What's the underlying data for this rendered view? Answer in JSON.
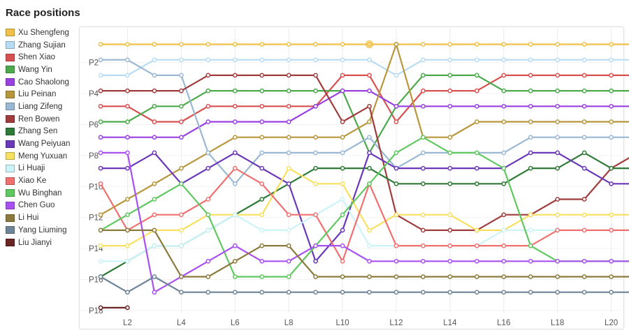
{
  "chart_data": {
    "type": "line",
    "title": "Race positions",
    "xlabel": "",
    "ylabel": "",
    "x": [
      "L1",
      "L2",
      "L3",
      "L4",
      "L5",
      "L6",
      "L7",
      "L8",
      "L9",
      "L10",
      "L11",
      "L12",
      "L13",
      "L14",
      "L15",
      "L16",
      "L17",
      "L18",
      "L19",
      "L20",
      "L21"
    ],
    "x_tick_labels": [
      "L2",
      "L4",
      "L6",
      "L8",
      "L10",
      "L12",
      "L14",
      "L16",
      "L18",
      "L20"
    ],
    "y_tick_labels": [
      "P2",
      "P4",
      "P6",
      "P8",
      "P10",
      "P12",
      "P14",
      "P16",
      "P18"
    ],
    "ylim": [
      1,
      18
    ],
    "y_reversed": true,
    "grid": true,
    "legend_position": "left",
    "series": [
      {
        "name": "Xu Shengfeng",
        "color": "#f0c048",
        "values": [
          1,
          1,
          1,
          1,
          1,
          1,
          1,
          1,
          1,
          1,
          1,
          1,
          1,
          1,
          1,
          1,
          1,
          1,
          1,
          1,
          1
        ]
      },
      {
        "name": "Zhang Sujian",
        "color": "#b8dcf4",
        "values": [
          3,
          3,
          2,
          2,
          2,
          2,
          2,
          2,
          2,
          2,
          2,
          3,
          2,
          2,
          2,
          2,
          2,
          2,
          2,
          2,
          2
        ]
      },
      {
        "name": "Shen Xiao",
        "color": "#d85050",
        "values": [
          5,
          5,
          6,
          6,
          5,
          5,
          5,
          5,
          5,
          3,
          3,
          6,
          4,
          4,
          4,
          3,
          3,
          3,
          3,
          3,
          3
        ]
      },
      {
        "name": "Wang Yin",
        "color": "#4caa4c",
        "values": [
          6,
          6,
          5,
          5,
          4,
          4,
          4,
          4,
          4,
          4,
          8,
          5,
          3,
          3,
          3,
          4,
          4,
          4,
          4,
          4,
          4
        ]
      },
      {
        "name": "Cao Shaolong",
        "color": "#9a40e0",
        "values": [
          7,
          7,
          7,
          7,
          6,
          6,
          6,
          6,
          5,
          4,
          4,
          5,
          5,
          5,
          5,
          5,
          5,
          5,
          5,
          5,
          5
        ]
      },
      {
        "name": "Liu Peinan",
        "color": "#b8963c",
        "values": [
          12,
          11,
          10,
          9,
          8,
          7,
          7,
          7,
          7,
          7,
          6,
          1,
          7,
          7,
          6,
          6,
          6,
          6,
          6,
          6,
          6
        ]
      },
      {
        "name": "Liang Zifeng",
        "color": "#9ab8d4",
        "values": [
          2,
          2,
          3,
          3,
          8,
          10,
          8,
          8,
          8,
          8,
          7,
          9,
          8,
          8,
          8,
          8,
          7,
          7,
          7,
          7,
          7
        ]
      },
      {
        "name": "Ren Bowen",
        "color": "#a03c3c",
        "values": [
          4,
          4,
          4,
          4,
          3,
          3,
          3,
          3,
          3,
          6,
          5,
          12,
          13,
          13,
          13,
          12,
          12,
          11,
          11,
          9,
          8
        ]
      },
      {
        "name": "Zhang Sen",
        "color": "#2e7a36",
        "values": [
          16,
          15,
          14,
          14,
          13,
          12,
          11,
          10,
          9,
          9,
          9,
          10,
          10,
          10,
          10,
          10,
          9,
          9,
          8,
          9,
          9
        ]
      },
      {
        "name": "Wang Peiyuan",
        "color": "#6a38b8",
        "values": [
          9,
          9,
          8,
          10,
          9,
          8,
          9,
          10,
          15,
          13,
          8,
          9,
          9,
          9,
          9,
          9,
          8,
          8,
          9,
          10,
          10
        ]
      },
      {
        "name": "Meng Yuxuan",
        "color": "#f8e060",
        "values": [
          14,
          14,
          13,
          13,
          12,
          12,
          12,
          9,
          10,
          10,
          13,
          12,
          12,
          12,
          13,
          13,
          12,
          12,
          12,
          12,
          12
        ]
      },
      {
        "name": "Li Huaji",
        "color": "#ccf4f8",
        "values": [
          15,
          15,
          14,
          14,
          13,
          12,
          13,
          13,
          12,
          11,
          14,
          14,
          14,
          14,
          14,
          13,
          13,
          13,
          13,
          13,
          13
        ]
      },
      {
        "name": "Xiao Ke",
        "color": "#f07070",
        "values": [
          10,
          13,
          12,
          12,
          11,
          9,
          10,
          12,
          12,
          15,
          10,
          14,
          14,
          14,
          14,
          14,
          14,
          13,
          13,
          13,
          13
        ]
      },
      {
        "name": "Wu Binghan",
        "color": "#60c860",
        "values": [
          13,
          12,
          11,
          10,
          12,
          16,
          16,
          16,
          14,
          12,
          10,
          8,
          7,
          8,
          8,
          9,
          14,
          15,
          15,
          15,
          15
        ]
      },
      {
        "name": "Chen Guo",
        "color": "#a850f0",
        "values": [
          8,
          8,
          17,
          16,
          15,
          14,
          15,
          15,
          14,
          14,
          15,
          15,
          15,
          15,
          15,
          15,
          15,
          15,
          15,
          15,
          15
        ]
      },
      {
        "name": "Li Hui",
        "color": "#8c7a3c",
        "values": [
          13,
          13,
          13,
          16,
          16,
          15,
          14,
          14,
          16,
          16,
          16,
          16,
          16,
          16,
          16,
          16,
          16,
          16,
          16,
          16,
          16
        ]
      },
      {
        "name": "Yang Liuming",
        "color": "#6e8498",
        "values": [
          16,
          17,
          16,
          17,
          17,
          17,
          17,
          17,
          17,
          17,
          17,
          17,
          17,
          17,
          17,
          17,
          17,
          17,
          17,
          17,
          17
        ]
      },
      {
        "name": "Liu Jianyi",
        "color": "#6a2424",
        "values": [
          18,
          18,
          null,
          null,
          null,
          null,
          null,
          null,
          null,
          null,
          null,
          null,
          null,
          null,
          null,
          null,
          null,
          null,
          null,
          null,
          null
        ]
      }
    ]
  }
}
